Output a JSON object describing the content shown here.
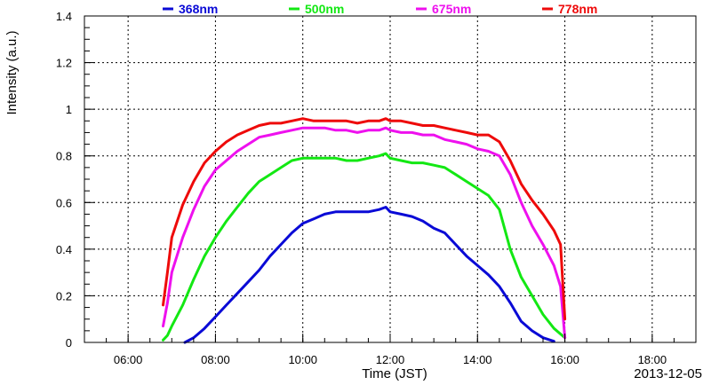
{
  "chart_data": {
    "type": "line",
    "title": "",
    "xlabel": "Time (JST)",
    "ylabel": "Intensity (a.u.)",
    "date_label": "2013-12-05",
    "xlim": [
      5.0,
      19.0
    ],
    "ylim": [
      0,
      1.4
    ],
    "x_ticks": [
      {
        "value": 6,
        "label": "06:00"
      },
      {
        "value": 8,
        "label": "08:00"
      },
      {
        "value": 10,
        "label": "10:00"
      },
      {
        "value": 12,
        "label": "12:00"
      },
      {
        "value": 14,
        "label": "14:00"
      },
      {
        "value": 16,
        "label": "16:00"
      },
      {
        "value": 18,
        "label": "18:00"
      }
    ],
    "y_ticks": [
      {
        "value": 0,
        "label": "0"
      },
      {
        "value": 0.2,
        "label": "0.2"
      },
      {
        "value": 0.4,
        "label": "0.4"
      },
      {
        "value": 0.6,
        "label": "0.6"
      },
      {
        "value": 0.8,
        "label": "0.8"
      },
      {
        "value": 1.0,
        "label": "1"
      },
      {
        "value": 1.2,
        "label": "1.2"
      },
      {
        "value": 1.4,
        "label": "1.4"
      }
    ],
    "grid": true,
    "legend_position": "top",
    "series": [
      {
        "name": "368nm",
        "color": "#0a0ad6",
        "points": [
          [
            7.3,
            0.0
          ],
          [
            7.5,
            0.02
          ],
          [
            7.75,
            0.06
          ],
          [
            8.0,
            0.11
          ],
          [
            8.25,
            0.16
          ],
          [
            8.5,
            0.21
          ],
          [
            8.75,
            0.26
          ],
          [
            9.0,
            0.31
          ],
          [
            9.25,
            0.37
          ],
          [
            9.5,
            0.42
          ],
          [
            9.75,
            0.47
          ],
          [
            10.0,
            0.51
          ],
          [
            10.25,
            0.53
          ],
          [
            10.5,
            0.55
          ],
          [
            10.75,
            0.56
          ],
          [
            11.0,
            0.56
          ],
          [
            11.25,
            0.56
          ],
          [
            11.5,
            0.56
          ],
          [
            11.75,
            0.57
          ],
          [
            11.9,
            0.58
          ],
          [
            12.0,
            0.56
          ],
          [
            12.25,
            0.55
          ],
          [
            12.5,
            0.54
          ],
          [
            12.75,
            0.52
          ],
          [
            13.0,
            0.49
          ],
          [
            13.25,
            0.47
          ],
          [
            13.5,
            0.42
          ],
          [
            13.75,
            0.37
          ],
          [
            14.0,
            0.33
          ],
          [
            14.25,
            0.29
          ],
          [
            14.5,
            0.24
          ],
          [
            14.75,
            0.17
          ],
          [
            15.0,
            0.09
          ],
          [
            15.25,
            0.05
          ],
          [
            15.5,
            0.02
          ],
          [
            15.75,
            0.005
          ]
        ]
      },
      {
        "name": "500nm",
        "color": "#13e813",
        "points": [
          [
            6.8,
            0.01
          ],
          [
            6.9,
            0.03
          ],
          [
            7.0,
            0.07
          ],
          [
            7.25,
            0.16
          ],
          [
            7.5,
            0.27
          ],
          [
            7.75,
            0.37
          ],
          [
            8.0,
            0.45
          ],
          [
            8.25,
            0.52
          ],
          [
            8.5,
            0.58
          ],
          [
            8.75,
            0.64
          ],
          [
            9.0,
            0.69
          ],
          [
            9.25,
            0.72
          ],
          [
            9.5,
            0.75
          ],
          [
            9.75,
            0.78
          ],
          [
            10.0,
            0.79
          ],
          [
            10.25,
            0.79
          ],
          [
            10.5,
            0.79
          ],
          [
            10.75,
            0.79
          ],
          [
            11.0,
            0.78
          ],
          [
            11.25,
            0.78
          ],
          [
            11.5,
            0.79
          ],
          [
            11.75,
            0.8
          ],
          [
            11.9,
            0.81
          ],
          [
            12.0,
            0.79
          ],
          [
            12.25,
            0.78
          ],
          [
            12.5,
            0.77
          ],
          [
            12.75,
            0.77
          ],
          [
            13.0,
            0.76
          ],
          [
            13.25,
            0.75
          ],
          [
            13.5,
            0.72
          ],
          [
            13.75,
            0.69
          ],
          [
            14.0,
            0.66
          ],
          [
            14.25,
            0.63
          ],
          [
            14.5,
            0.57
          ],
          [
            14.75,
            0.4
          ],
          [
            15.0,
            0.28
          ],
          [
            15.25,
            0.2
          ],
          [
            15.5,
            0.12
          ],
          [
            15.75,
            0.06
          ],
          [
            16.0,
            0.02
          ]
        ]
      },
      {
        "name": "675nm",
        "color": "#ee10ee",
        "points": [
          [
            6.8,
            0.07
          ],
          [
            6.9,
            0.17
          ],
          [
            7.0,
            0.3
          ],
          [
            7.25,
            0.45
          ],
          [
            7.5,
            0.57
          ],
          [
            7.75,
            0.67
          ],
          [
            8.0,
            0.74
          ],
          [
            8.25,
            0.78
          ],
          [
            8.5,
            0.82
          ],
          [
            8.75,
            0.85
          ],
          [
            9.0,
            0.88
          ],
          [
            9.25,
            0.89
          ],
          [
            9.5,
            0.9
          ],
          [
            9.75,
            0.91
          ],
          [
            10.0,
            0.92
          ],
          [
            10.25,
            0.92
          ],
          [
            10.5,
            0.92
          ],
          [
            10.75,
            0.91
          ],
          [
            11.0,
            0.91
          ],
          [
            11.25,
            0.9
          ],
          [
            11.5,
            0.91
          ],
          [
            11.75,
            0.91
          ],
          [
            11.9,
            0.92
          ],
          [
            12.0,
            0.91
          ],
          [
            12.25,
            0.9
          ],
          [
            12.5,
            0.9
          ],
          [
            12.75,
            0.89
          ],
          [
            13.0,
            0.89
          ],
          [
            13.25,
            0.87
          ],
          [
            13.5,
            0.86
          ],
          [
            13.75,
            0.85
          ],
          [
            14.0,
            0.83
          ],
          [
            14.25,
            0.82
          ],
          [
            14.5,
            0.8
          ],
          [
            14.75,
            0.72
          ],
          [
            15.0,
            0.6
          ],
          [
            15.25,
            0.5
          ],
          [
            15.5,
            0.42
          ],
          [
            15.75,
            0.33
          ],
          [
            15.9,
            0.24
          ],
          [
            16.0,
            0.02
          ]
        ]
      },
      {
        "name": "778nm",
        "color": "#ee0a0a",
        "points": [
          [
            6.8,
            0.16
          ],
          [
            6.9,
            0.3
          ],
          [
            7.0,
            0.45
          ],
          [
            7.25,
            0.59
          ],
          [
            7.5,
            0.69
          ],
          [
            7.75,
            0.77
          ],
          [
            8.0,
            0.82
          ],
          [
            8.25,
            0.86
          ],
          [
            8.5,
            0.89
          ],
          [
            8.75,
            0.91
          ],
          [
            9.0,
            0.93
          ],
          [
            9.25,
            0.94
          ],
          [
            9.5,
            0.94
          ],
          [
            9.75,
            0.95
          ],
          [
            10.0,
            0.96
          ],
          [
            10.25,
            0.95
          ],
          [
            10.5,
            0.95
          ],
          [
            10.75,
            0.95
          ],
          [
            11.0,
            0.95
          ],
          [
            11.25,
            0.94
          ],
          [
            11.5,
            0.95
          ],
          [
            11.75,
            0.95
          ],
          [
            11.9,
            0.96
          ],
          [
            12.0,
            0.95
          ],
          [
            12.25,
            0.95
          ],
          [
            12.5,
            0.94
          ],
          [
            12.75,
            0.93
          ],
          [
            13.0,
            0.93
          ],
          [
            13.25,
            0.92
          ],
          [
            13.5,
            0.91
          ],
          [
            13.75,
            0.9
          ],
          [
            14.0,
            0.89
          ],
          [
            14.25,
            0.89
          ],
          [
            14.5,
            0.86
          ],
          [
            14.75,
            0.78
          ],
          [
            15.0,
            0.68
          ],
          [
            15.25,
            0.61
          ],
          [
            15.5,
            0.55
          ],
          [
            15.75,
            0.48
          ],
          [
            15.9,
            0.42
          ],
          [
            16.0,
            0.1
          ]
        ]
      }
    ]
  }
}
